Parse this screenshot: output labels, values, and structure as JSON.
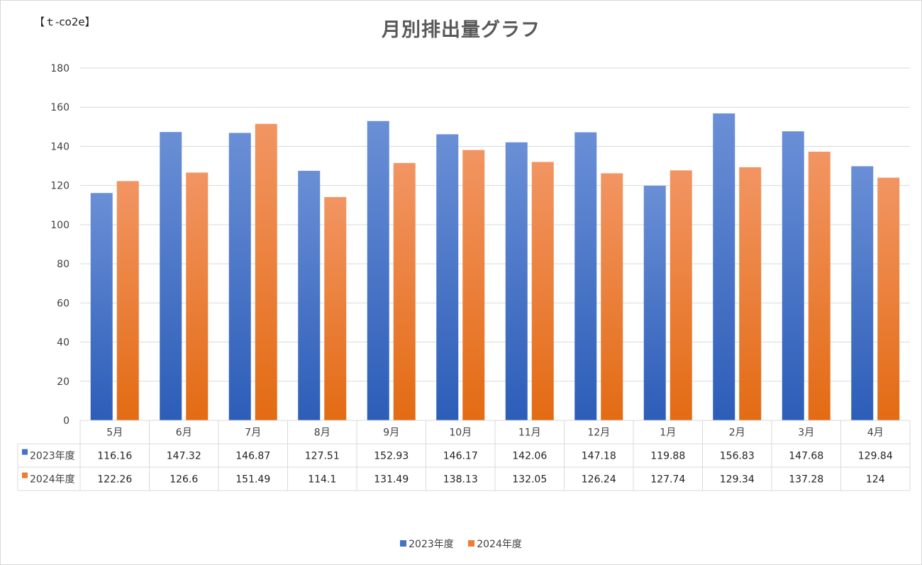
{
  "chart_data": {
    "type": "bar",
    "title": "月別排出量グラフ",
    "unit_label": "【ｔ-co2e】",
    "ylim": [
      0,
      180
    ],
    "yticks": [
      0,
      20,
      40,
      60,
      80,
      100,
      120,
      140,
      160,
      180
    ],
    "grid": true,
    "legend_position": "bottom",
    "data_table": true,
    "categories": [
      "5月",
      "6月",
      "7月",
      "8月",
      "9月",
      "10月",
      "11月",
      "12月",
      "1月",
      "2月",
      "3月",
      "4月"
    ],
    "series": [
      {
        "name": "2023年度",
        "color": "#4472c4",
        "values": [
          116.16,
          147.32,
          146.87,
          127.51,
          152.93,
          146.17,
          142.06,
          147.18,
          119.88,
          156.83,
          147.68,
          129.84
        ]
      },
      {
        "name": "2024年度",
        "color": "#ed7d31",
        "values": [
          122.26,
          126.6,
          151.49,
          114.1,
          131.49,
          138.13,
          132.05,
          126.24,
          127.74,
          129.34,
          137.28,
          124
        ]
      }
    ]
  }
}
